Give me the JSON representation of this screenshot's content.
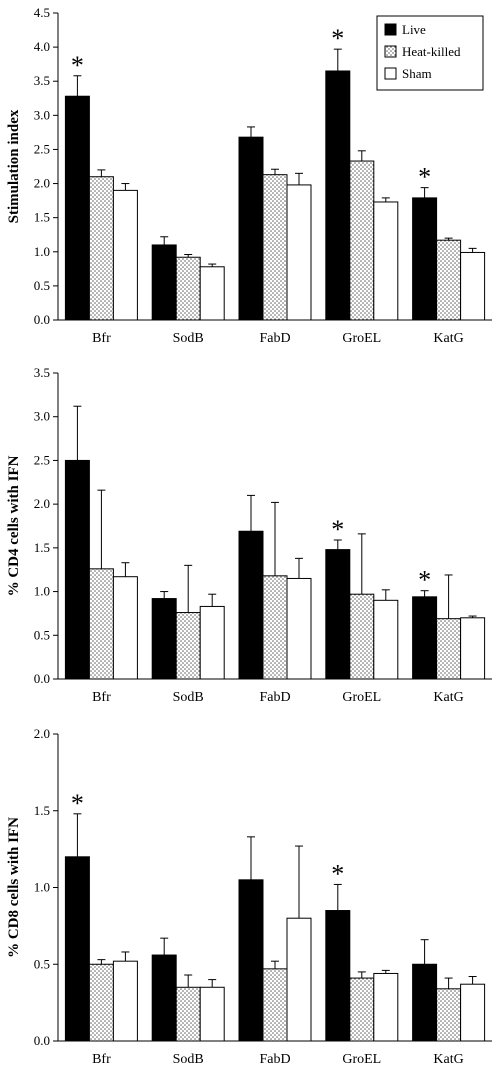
{
  "chart_data": [
    {
      "type": "bar",
      "ylabel": "Stimulation index",
      "ylim": [
        0,
        4.5
      ],
      "yticks": [
        "0.0",
        "0.5",
        "1.0",
        "1.5",
        "2.0",
        "2.5",
        "3.0",
        "3.5",
        "4.0",
        "4.5"
      ],
      "categories": [
        "Bfr",
        "SodB",
        "FabD",
        "GroEL",
        "KatG"
      ],
      "legend": "top-right",
      "series": [
        {
          "name": "Live",
          "values": [
            3.28,
            1.1,
            2.68,
            3.65,
            1.79
          ],
          "errors": [
            0.3,
            0.12,
            0.15,
            0.32,
            0.15
          ]
        },
        {
          "name": "Heat-killed",
          "values": [
            2.1,
            0.92,
            2.13,
            2.33,
            1.17
          ],
          "errors": [
            0.1,
            0.04,
            0.08,
            0.15,
            0.03
          ]
        },
        {
          "name": "Sham",
          "values": [
            1.9,
            0.78,
            1.98,
            1.73,
            0.99
          ],
          "errors": [
            0.1,
            0.04,
            0.17,
            0.06,
            0.06
          ]
        }
      ],
      "significant": [
        true,
        false,
        false,
        true,
        true
      ]
    },
    {
      "type": "bar",
      "ylabel": "% CD4 cells with IFN",
      "ylim": [
        0,
        3.5
      ],
      "yticks": [
        "0.0",
        "0.5",
        "1.0",
        "1.5",
        "2.0",
        "2.5",
        "3.0",
        "3.5"
      ],
      "categories": [
        "Bfr",
        "SodB",
        "FabD",
        "GroEL",
        "KatG"
      ],
      "series": [
        {
          "name": "Live",
          "values": [
            2.5,
            0.92,
            1.69,
            1.48,
            0.94
          ],
          "errors": [
            0.62,
            0.08,
            0.41,
            0.11,
            0.07
          ]
        },
        {
          "name": "Heat-killed",
          "values": [
            1.26,
            0.76,
            1.18,
            0.97,
            0.69
          ],
          "errors": [
            0.9,
            0.54,
            0.84,
            0.69,
            0.5
          ]
        },
        {
          "name": "Sham",
          "values": [
            1.17,
            0.83,
            1.15,
            0.9,
            0.7
          ],
          "errors": [
            0.16,
            0.14,
            0.23,
            0.12,
            0.02
          ]
        }
      ],
      "significant": [
        false,
        false,
        false,
        true,
        true
      ]
    },
    {
      "type": "bar",
      "ylabel": "% CD8 cells with IFN",
      "ylim": [
        0,
        2.0
      ],
      "yticks": [
        "0.0",
        "0.5",
        "1.0",
        "1.5",
        "2.0"
      ],
      "categories": [
        "Bfr",
        "SodB",
        "FabD",
        "GroEL",
        "KatG"
      ],
      "series": [
        {
          "name": "Live",
          "values": [
            1.2,
            0.56,
            1.05,
            0.85,
            0.5
          ],
          "errors": [
            0.28,
            0.11,
            0.28,
            0.17,
            0.16
          ]
        },
        {
          "name": "Heat-killed",
          "values": [
            0.5,
            0.35,
            0.47,
            0.41,
            0.34
          ],
          "errors": [
            0.03,
            0.08,
            0.05,
            0.04,
            0.07
          ]
        },
        {
          "name": "Sham",
          "values": [
            0.52,
            0.35,
            0.8,
            0.44,
            0.37
          ],
          "errors": [
            0.06,
            0.05,
            0.47,
            0.02,
            0.05
          ]
        }
      ],
      "significant": [
        true,
        false,
        false,
        true,
        false
      ]
    }
  ],
  "significance_marker": "*",
  "colors": {
    "live": "#000000",
    "heat_killed": "#dcdcdc",
    "sham": "#ffffff",
    "axis": "#000000"
  },
  "fills": {
    "live": "solid",
    "heat_killed": "dotted",
    "sham": "empty"
  }
}
